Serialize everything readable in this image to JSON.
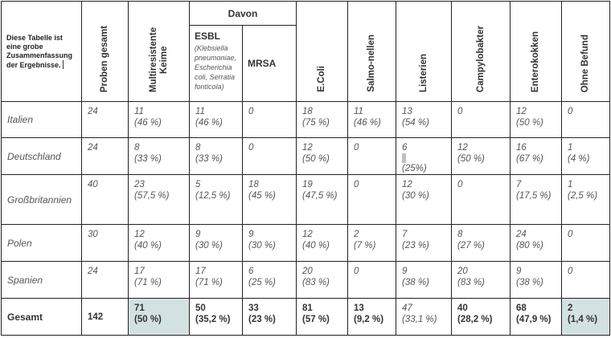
{
  "corner_text": "Diese Tabelle ist eine grobe Zusammenfassung der Ergebnisse.",
  "headers": {
    "proben_gesamt": "Proben gesamt",
    "multiresistente": "Multiresistente Keime",
    "davon": "Davon",
    "esbl": "ESBL",
    "esbl_sub": "(Klebsiella pneumoniae, Escherichia coli, Serratia fonticola)",
    "mrsa": "MRSA",
    "ecoli": "E.Coli",
    "salmonellen": "Salmo-nellen",
    "listerien": "Listerien",
    "campylobakter": "Campylobakter",
    "enterokokken": "Enterokokken",
    "ohne_befund": "Ohne Befund"
  },
  "rows": [
    {
      "country": "Italien",
      "proben": "24",
      "multi": [
        "11",
        "(46 %)"
      ],
      "esbl": [
        "11",
        "(46 %)"
      ],
      "mrsa": [
        "0",
        ""
      ],
      "ecoli": [
        "18",
        "(75 %)"
      ],
      "salmo": [
        "11",
        "(46 %)"
      ],
      "listerien": [
        "13",
        "(54 %)"
      ],
      "campylo": [
        "0",
        ""
      ],
      "entero": [
        "12",
        "(50 %)"
      ],
      "ohne": [
        "0",
        ""
      ]
    },
    {
      "country": "Deutschland",
      "proben": "24",
      "multi": [
        "8",
        "(33 %)"
      ],
      "esbl": [
        "8",
        "(33 %)"
      ],
      "mrsa": [
        "0",
        ""
      ],
      "ecoli": [
        "12",
        "(50 %)"
      ],
      "salmo": [
        "0",
        ""
      ],
      "listerien": [
        "6",
        "(25%)"
      ],
      "campylo": [
        "12",
        "(50 %)"
      ],
      "entero": [
        "16",
        "(67 %)"
      ],
      "ohne": [
        "1",
        "(4 %)"
      ]
    },
    {
      "country": "Großbritannien",
      "proben": "40",
      "multi": [
        "23",
        "(57,5 %)"
      ],
      "esbl": [
        "5",
        "(12,5 %)"
      ],
      "mrsa": [
        "18",
        "(45 %)"
      ],
      "ecoli": [
        "19",
        "(47,5 %)"
      ],
      "salmo": [
        "0",
        ""
      ],
      "listerien": [
        "12",
        "(30 %)"
      ],
      "campylo": [
        "0",
        ""
      ],
      "entero": [
        "7",
        "(17,5 %)"
      ],
      "ohne": [
        "1",
        "(2,5 %)"
      ]
    },
    {
      "country": "Polen",
      "proben": "30",
      "multi": [
        "12",
        "(40 %)"
      ],
      "esbl": [
        "9",
        "(30 %)"
      ],
      "mrsa": [
        "9",
        "(30 %)"
      ],
      "ecoli": [
        "12",
        "(40 %)"
      ],
      "salmo": [
        "2",
        "(7 %)"
      ],
      "listerien": [
        "7",
        "(23 %)"
      ],
      "campylo": [
        "8",
        "(27 %)"
      ],
      "entero": [
        "24",
        "(80 %)"
      ],
      "ohne": [
        "0",
        ""
      ]
    },
    {
      "country": "Spanien",
      "proben": "24",
      "multi": [
        "17",
        "(71 %)"
      ],
      "esbl": [
        "17",
        "(71 %)"
      ],
      "mrsa": [
        "6",
        "(25 %)"
      ],
      "ecoli": [
        "20",
        "(83 %)"
      ],
      "salmo": [
        "0",
        ""
      ],
      "listerien": [
        "9",
        "(38 %)"
      ],
      "campylo": [
        "20",
        "(83 %)"
      ],
      "entero": [
        "9",
        "(38 %)"
      ],
      "ohne": [
        "0",
        ""
      ]
    }
  ],
  "total": {
    "label": "Gesamt",
    "proben": "142",
    "multi": [
      "71",
      "(50 %)"
    ],
    "esbl": [
      "50",
      "(35,2 %)"
    ],
    "mrsa": [
      "33",
      "(23 %)"
    ],
    "ecoli": [
      "81",
      "(57 %)"
    ],
    "salmo": [
      "13",
      "(9,2 %)"
    ],
    "listerien": [
      "47",
      "(33,1 %)"
    ],
    "campylo": [
      "40",
      "(28,2 %)"
    ],
    "entero": [
      "68",
      "(47,9 %)"
    ],
    "ohne": [
      "2",
      "(1,4 %)"
    ]
  },
  "colors": {
    "highlight": "#d3e1e3",
    "border": "#222222"
  }
}
